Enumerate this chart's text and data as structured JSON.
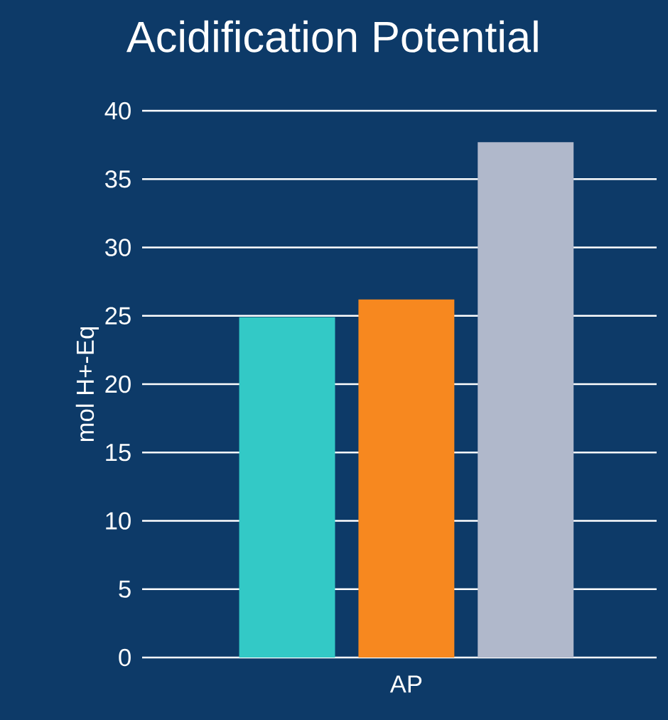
{
  "chart_data": {
    "type": "bar",
    "title": "Acidification Potential",
    "ylabel": "mol H+-Eq",
    "categories": [
      "AP"
    ],
    "series": [
      {
        "color": "#33c9c6",
        "values": [
          24.9
        ]
      },
      {
        "color": "#f7881f",
        "values": [
          26.2
        ]
      },
      {
        "color": "#b0b8cb",
        "values": [
          37.7
        ]
      }
    ],
    "ylim": [
      0,
      40
    ],
    "yticks": [
      0,
      5,
      10,
      15,
      20,
      25,
      30,
      35,
      40
    ],
    "grid": "y"
  }
}
